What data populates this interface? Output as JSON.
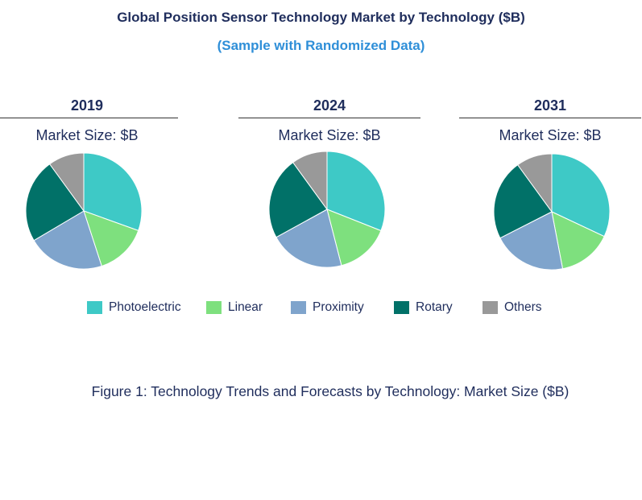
{
  "header": {
    "title": "Global Position Sensor Technology Market by Technology ($B)",
    "subtitle": "(Sample with Randomized Data)"
  },
  "caption": "Figure 1: Technology Trends and Forecasts by Technology: Market Size ($B)",
  "colors": {
    "Photoelectric": "#3ec9c6",
    "Linear": "#7ee07e",
    "Proximity": "#7fa4cc",
    "Rotary": "#017168",
    "Others": "#999999"
  },
  "chart_data": [
    {
      "type": "pie",
      "title": "2019",
      "subtitle": "Market Size: $B",
      "categories": [
        "Photoelectric",
        "Linear",
        "Proximity",
        "Rotary",
        "Others"
      ],
      "values": [
        30.5,
        14.5,
        21.5,
        23.5,
        10
      ]
    },
    {
      "type": "pie",
      "title": "2024",
      "subtitle": "Market Size: $B",
      "categories": [
        "Photoelectric",
        "Linear",
        "Proximity",
        "Rotary",
        "Others"
      ],
      "values": [
        31,
        15,
        21,
        23,
        10
      ]
    },
    {
      "type": "pie",
      "title": "2031",
      "subtitle": "Market Size: $B",
      "categories": [
        "Photoelectric",
        "Linear",
        "Proximity",
        "Rotary",
        "Others"
      ],
      "values": [
        32,
        15,
        20.5,
        22.5,
        10
      ]
    }
  ],
  "legend": [
    "Photoelectric",
    "Linear",
    "Proximity",
    "Rotary",
    "Others"
  ]
}
